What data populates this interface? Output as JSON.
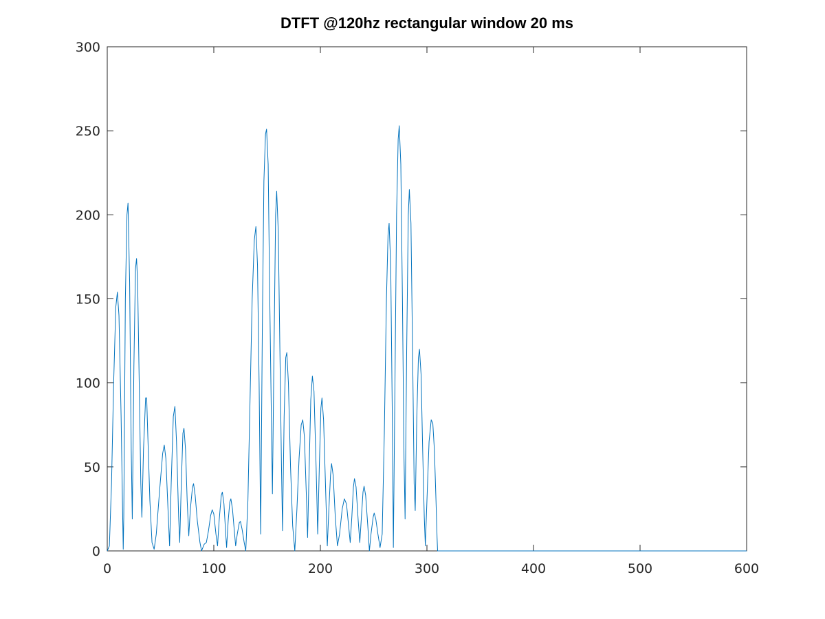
{
  "chart_data": {
    "type": "line",
    "title": "DTFT @120hz rectangular window 20 ms",
    "xlabel": "",
    "ylabel": "",
    "xlim": [
      0,
      600
    ],
    "ylim": [
      0,
      300
    ],
    "xticks": [
      0,
      100,
      200,
      300,
      400,
      500,
      600
    ],
    "yticks": [
      0,
      50,
      100,
      150,
      200,
      250,
      300
    ],
    "grid": false,
    "color": "#0072BD",
    "series": [
      {
        "points": [
          [
            0,
            0
          ],
          [
            2,
            3
          ],
          [
            4,
            40
          ],
          [
            6,
            100
          ],
          [
            8,
            145
          ],
          [
            9.5,
            154
          ],
          [
            11,
            140
          ],
          [
            13,
            80
          ],
          [
            14.5,
            20
          ],
          [
            15,
            1
          ],
          [
            15.5,
            20
          ],
          [
            17,
            150
          ],
          [
            18.5,
            200
          ],
          [
            19.5,
            207
          ],
          [
            21,
            160
          ],
          [
            22.5,
            60
          ],
          [
            23.5,
            19
          ],
          [
            25,
            110
          ],
          [
            26.5,
            168
          ],
          [
            27.5,
            174
          ],
          [
            28.5,
            160
          ],
          [
            30,
            100
          ],
          [
            31.5,
            40
          ],
          [
            32.5,
            20
          ],
          [
            34,
            60
          ],
          [
            36,
            91
          ],
          [
            37,
            91
          ],
          [
            38,
            70
          ],
          [
            40,
            30
          ],
          [
            42,
            5
          ],
          [
            44,
            1
          ],
          [
            46,
            10
          ],
          [
            49,
            35
          ],
          [
            52,
            58
          ],
          [
            53.5,
            63
          ],
          [
            55,
            55
          ],
          [
            57,
            25
          ],
          [
            58.5,
            3
          ],
          [
            60,
            40
          ],
          [
            62,
            80
          ],
          [
            63.5,
            86
          ],
          [
            65,
            65
          ],
          [
            67,
            20
          ],
          [
            68,
            5
          ],
          [
            69.5,
            40
          ],
          [
            71,
            70
          ],
          [
            72,
            73
          ],
          [
            73.5,
            60
          ],
          [
            75,
            30
          ],
          [
            76.5,
            9
          ],
          [
            78,
            25
          ],
          [
            80,
            38
          ],
          [
            81,
            40
          ],
          [
            82.5,
            33
          ],
          [
            84.5,
            18
          ],
          [
            87,
            5
          ],
          [
            88.5,
            0
          ],
          [
            91,
            4
          ],
          [
            93,
            5
          ],
          [
            95,
            12
          ],
          [
            97,
            21
          ],
          [
            98.5,
            24.5
          ],
          [
            100,
            22
          ],
          [
            102,
            10
          ],
          [
            103.5,
            3
          ],
          [
            105,
            18
          ],
          [
            107,
            33
          ],
          [
            108,
            35
          ],
          [
            109.5,
            28
          ],
          [
            111,
            12
          ],
          [
            112,
            2
          ],
          [
            113.5,
            18
          ],
          [
            115,
            29
          ],
          [
            116,
            31
          ],
          [
            117.5,
            25
          ],
          [
            119.5,
            10
          ],
          [
            120.5,
            3
          ],
          [
            122,
            10
          ],
          [
            124,
            17
          ],
          [
            125,
            17.5
          ],
          [
            126.5,
            13
          ],
          [
            128.5,
            5
          ],
          [
            130,
            0
          ],
          [
            132,
            30
          ],
          [
            134,
            90
          ],
          [
            136,
            150
          ],
          [
            138,
            185
          ],
          [
            139.5,
            193
          ],
          [
            141,
            170
          ],
          [
            142.5,
            100
          ],
          [
            144,
            10
          ],
          [
            145.5,
            130
          ],
          [
            147,
            220
          ],
          [
            148.5,
            248
          ],
          [
            149.5,
            251
          ],
          [
            151,
            230
          ],
          [
            152.5,
            150
          ],
          [
            154,
            80
          ],
          [
            155,
            34
          ],
          [
            156.5,
            120
          ],
          [
            158,
            200
          ],
          [
            159,
            214
          ],
          [
            160.5,
            190
          ],
          [
            162,
            120
          ],
          [
            163.5,
            50
          ],
          [
            164.5,
            12
          ],
          [
            166,
            80
          ],
          [
            167.5,
            115
          ],
          [
            168.5,
            118
          ],
          [
            170,
            100
          ],
          [
            172,
            50
          ],
          [
            174,
            15
          ],
          [
            176,
            0
          ],
          [
            178,
            25
          ],
          [
            180,
            55
          ],
          [
            182,
            75
          ],
          [
            183.5,
            78
          ],
          [
            185,
            68
          ],
          [
            187,
            30
          ],
          [
            188,
            8
          ],
          [
            189.5,
            50
          ],
          [
            191,
            90
          ],
          [
            192.5,
            104
          ],
          [
            194,
            95
          ],
          [
            196,
            50
          ],
          [
            197.5,
            10
          ],
          [
            199,
            50
          ],
          [
            200.5,
            85
          ],
          [
            201.5,
            91
          ],
          [
            203,
            78
          ],
          [
            205,
            35
          ],
          [
            206.5,
            3
          ],
          [
            208,
            25
          ],
          [
            209.5,
            45
          ],
          [
            210.5,
            52
          ],
          [
            212,
            45
          ],
          [
            214,
            20
          ],
          [
            216,
            3
          ],
          [
            218,
            10
          ],
          [
            220.5,
            25
          ],
          [
            222.5,
            31
          ],
          [
            224.5,
            28
          ],
          [
            226.5,
            15
          ],
          [
            228,
            5
          ],
          [
            229.5,
            20
          ],
          [
            231,
            38
          ],
          [
            232,
            43
          ],
          [
            233.5,
            38
          ],
          [
            235.5,
            18
          ],
          [
            237,
            5
          ],
          [
            238.5,
            20
          ],
          [
            240,
            35
          ],
          [
            241,
            38.5
          ],
          [
            242.5,
            33
          ],
          [
            244.5,
            15
          ],
          [
            246,
            0
          ],
          [
            247.5,
            10
          ],
          [
            249.5,
            20
          ],
          [
            250.5,
            22.5
          ],
          [
            252,
            19
          ],
          [
            254,
            10
          ],
          [
            256,
            2
          ],
          [
            258,
            10
          ],
          [
            260,
            70
          ],
          [
            262,
            150
          ],
          [
            263.5,
            188
          ],
          [
            264.5,
            195
          ],
          [
            266,
            170
          ],
          [
            267.5,
            80
          ],
          [
            268.5,
            2
          ],
          [
            270,
            100
          ],
          [
            271.5,
            200
          ],
          [
            273,
            245
          ],
          [
            274,
            253
          ],
          [
            275.5,
            230
          ],
          [
            277,
            150
          ],
          [
            278.5,
            55
          ],
          [
            279.5,
            19
          ],
          [
            281,
            120
          ],
          [
            282.5,
            200
          ],
          [
            283.5,
            215
          ],
          [
            285,
            195
          ],
          [
            286.5,
            120
          ],
          [
            288,
            40
          ],
          [
            289,
            24
          ],
          [
            290.5,
            80
          ],
          [
            292,
            115
          ],
          [
            293,
            120
          ],
          [
            294.5,
            105
          ],
          [
            296,
            60
          ],
          [
            297.5,
            20
          ],
          [
            298.5,
            3
          ],
          [
            300,
            30
          ],
          [
            302,
            65
          ],
          [
            304,
            78
          ],
          [
            305.5,
            76
          ],
          [
            307,
            60
          ],
          [
            308.5,
            30
          ],
          [
            309.5,
            8
          ],
          [
            310,
            0
          ],
          [
            400,
            0
          ],
          [
            500,
            0
          ],
          [
            600,
            0
          ]
        ]
      }
    ]
  }
}
